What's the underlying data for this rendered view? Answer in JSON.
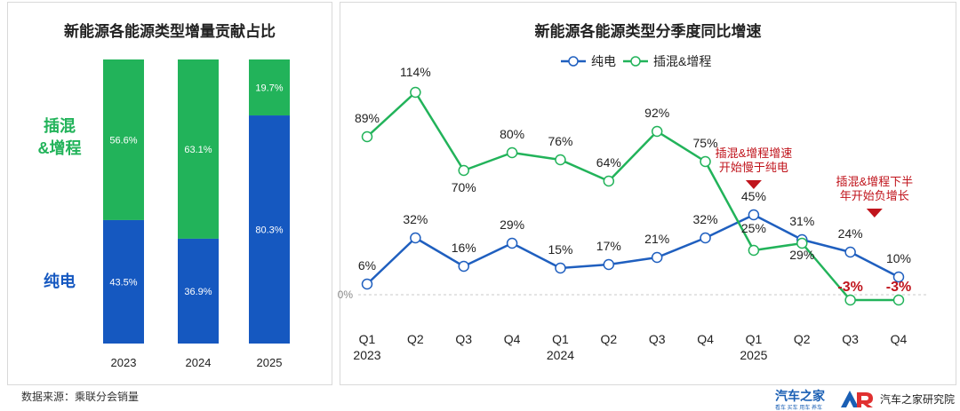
{
  "chart_data": [
    {
      "type": "bar",
      "stacked": true,
      "title": "新能源各能源类型增量贡献占比",
      "categories": [
        "2023",
        "2024",
        "2025"
      ],
      "series": [
        {
          "name": "纯电",
          "values": [
            43.5,
            36.9,
            80.3
          ],
          "labels": [
            "43.5%",
            "36.9%",
            "80.3%"
          ],
          "color": "#1558c0"
        },
        {
          "name": "插混&增程",
          "values": [
            56.6,
            63.1,
            19.7
          ],
          "labels": [
            "56.6%",
            "63.1%",
            "19.7%"
          ],
          "color": "#22b35a"
        }
      ],
      "ylim": [
        0,
        100
      ]
    },
    {
      "type": "line",
      "title": "新能源各能源类型分季度同比增速",
      "categories": [
        "Q1",
        "Q2",
        "Q3",
        "Q4",
        "Q1",
        "Q2",
        "Q3",
        "Q4",
        "Q1",
        "Q2",
        "Q3",
        "Q4"
      ],
      "year_labels": [
        "2023",
        "2024",
        "2025"
      ],
      "year_label_positions": [
        0,
        4,
        8
      ],
      "series": [
        {
          "name": "纯电",
          "values": [
            6,
            32,
            16,
            29,
            15,
            17,
            21,
            32,
            45,
            31,
            24,
            10
          ],
          "labels": [
            "6%",
            "32%",
            "16%",
            "29%",
            "15%",
            "17%",
            "21%",
            "32%",
            "45%",
            "31%",
            "24%",
            "10%"
          ],
          "color": "#1f5fbf"
        },
        {
          "name": "插混&增程",
          "values": [
            89,
            114,
            70,
            80,
            76,
            64,
            92,
            75,
            25,
            29,
            -3,
            -3
          ],
          "labels": [
            "89%",
            "114%",
            "70%",
            "80%",
            "76%",
            "64%",
            "92%",
            "75%",
            "25%",
            "29%",
            "-3%",
            "-3%"
          ],
          "color": "#22b35a"
        }
      ],
      "zero_label": "0%",
      "ylim": [
        -10,
        120
      ],
      "grid": false,
      "legend": "top",
      "annotations": [
        {
          "lines": [
            "插混&增程增速",
            "开始慢于纯电"
          ],
          "at_index": 8
        },
        {
          "lines": [
            "插混&增程下半",
            "年开始负增长"
          ],
          "at_index": 10.5
        }
      ],
      "negative_label_color": "#c0141c",
      "annotation_color": "#c0141c"
    }
  ],
  "left_panel": {
    "row_labels": [
      "插混",
      "&增程",
      "纯电"
    ]
  },
  "footer": {
    "source": "数据来源：乘联分会销量",
    "logo_a": "汽车之家",
    "logo_a_sub": "看车 买车 用车 养车",
    "logo_b": "汽车之家研究院"
  }
}
